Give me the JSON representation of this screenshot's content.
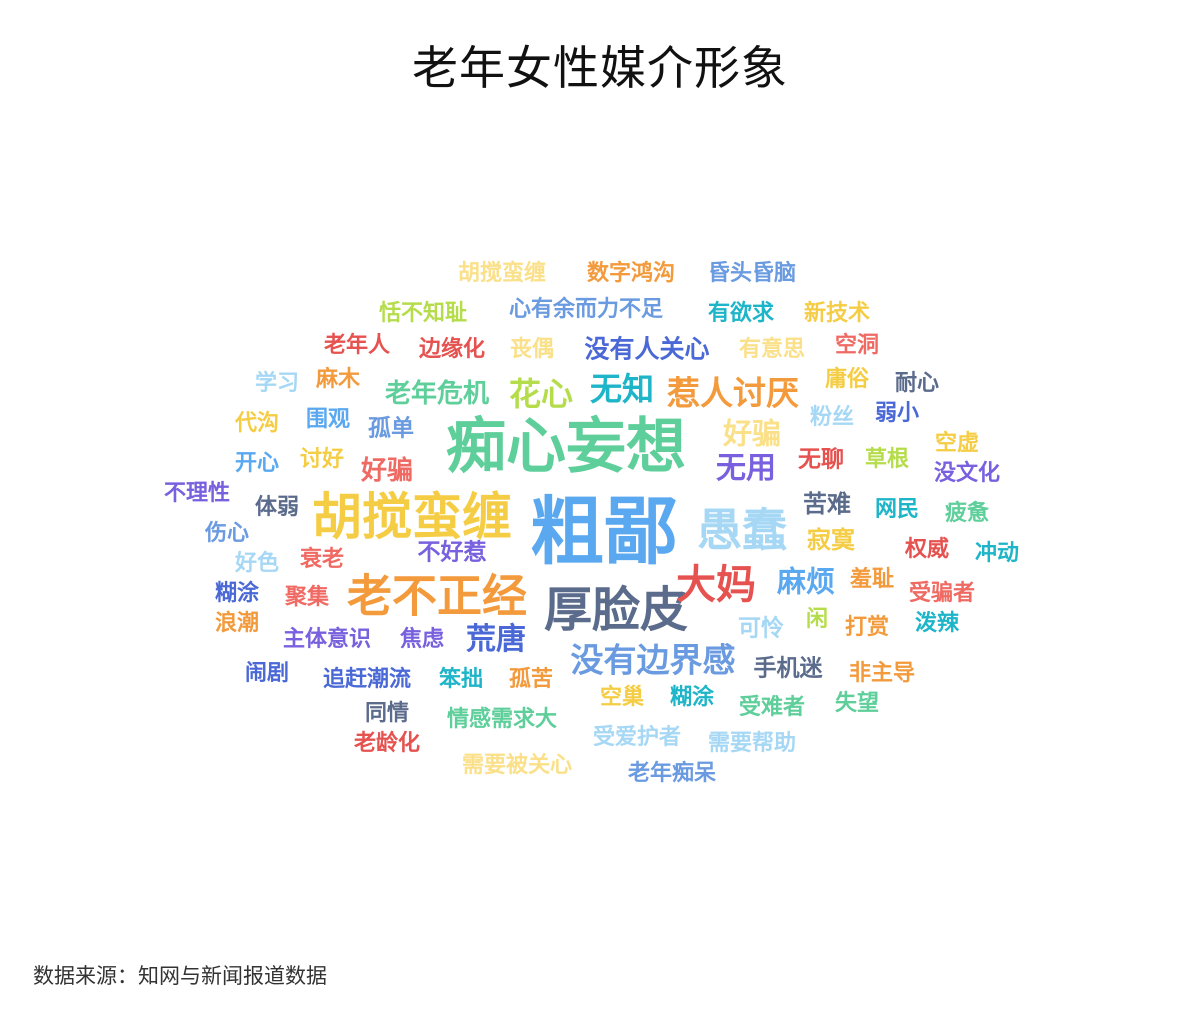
{
  "title": "老年女性媒介形象",
  "source": "数据来源：知网与新闻报道数据",
  "chart_data": {
    "type": "wordcloud",
    "title": "老年女性媒介形象",
    "words": [
      {
        "text": "粗鄙",
        "weight": 100,
        "color": "#5aa8f0"
      },
      {
        "text": "痴心妄想",
        "weight": 80,
        "color": "#5ecf9a"
      },
      {
        "text": "胡搅蛮缠",
        "weight": 65,
        "color": "#f5cd45"
      },
      {
        "text": "厚脸皮",
        "weight": 62,
        "color": "#5b6b8c"
      },
      {
        "text": "愚蠢",
        "weight": 58,
        "color": "#a6d8f5"
      },
      {
        "text": "老不正经",
        "weight": 58,
        "color": "#f39a3c"
      },
      {
        "text": "大妈",
        "weight": 50,
        "color": "#e5524f"
      },
      {
        "text": "没有边界感",
        "weight": 40,
        "color": "#6a9ae0"
      },
      {
        "text": "惹人讨厌",
        "weight": 40,
        "color": "#f39a3c"
      },
      {
        "text": "无知",
        "weight": 38,
        "color": "#1eb5c9"
      },
      {
        "text": "花心",
        "weight": 38,
        "color": "#b5dd4b"
      },
      {
        "text": "荒唐",
        "weight": 36,
        "color": "#4a68d6"
      },
      {
        "text": "无用",
        "weight": 36,
        "color": "#7860de"
      },
      {
        "text": "好骗",
        "weight": 35,
        "color": "#fbe08a"
      },
      {
        "text": "麻烦",
        "weight": 34,
        "color": "#5aa8f0"
      },
      {
        "text": "老年危机",
        "weight": 30,
        "color": "#5ecf9a"
      },
      {
        "text": "好骗",
        "weight": 30,
        "color": "#f06a64"
      },
      {
        "text": "没有人关心",
        "weight": 28,
        "color": "#4a68d6"
      },
      {
        "text": "苦难",
        "weight": 27,
        "color": "#5b6b8c"
      },
      {
        "text": "寂寞",
        "weight": 27,
        "color": "#f5cd45"
      },
      {
        "text": "可怜",
        "weight": 26,
        "color": "#a6d8f5"
      },
      {
        "text": "无聊",
        "weight": 26,
        "color": "#e5524f"
      },
      {
        "text": "孤单",
        "weight": 26,
        "color": "#6a9ae0"
      },
      {
        "text": "不好惹",
        "weight": 25,
        "color": "#7860de"
      },
      {
        "text": "手机迷",
        "weight": 25,
        "color": "#5b6b8c"
      },
      {
        "text": "心有余而力不足",
        "weight": 24,
        "color": "#6a9ae0"
      },
      {
        "text": "恬不知耻",
        "weight": 24,
        "color": "#b5dd4b"
      },
      {
        "text": "胡搅蛮缠",
        "weight": 24,
        "color": "#fbe08a"
      },
      {
        "text": "数字鸿沟",
        "weight": 24,
        "color": "#f39a3c"
      },
      {
        "text": "昏头昏脑",
        "weight": 24,
        "color": "#6a9ae0"
      },
      {
        "text": "有欲求",
        "weight": 24,
        "color": "#1eb5c9"
      },
      {
        "text": "新技术",
        "weight": 24,
        "color": "#f5cd45"
      },
      {
        "text": "老年人",
        "weight": 24,
        "color": "#e5524f"
      },
      {
        "text": "边缘化",
        "weight": 24,
        "color": "#e5524f"
      },
      {
        "text": "丧偶",
        "weight": 24,
        "color": "#fbe08a"
      },
      {
        "text": "有意思",
        "weight": 24,
        "color": "#fbe08a"
      },
      {
        "text": "空洞",
        "weight": 24,
        "color": "#f06a64"
      },
      {
        "text": "学习",
        "weight": 24,
        "color": "#a6d8f5"
      },
      {
        "text": "麻木",
        "weight": 24,
        "color": "#f39a3c"
      },
      {
        "text": "庸俗",
        "weight": 24,
        "color": "#f5cd45"
      },
      {
        "text": "耐心",
        "weight": 24,
        "color": "#5b6b8c"
      },
      {
        "text": "代沟",
        "weight": 24,
        "color": "#f5cd45"
      },
      {
        "text": "围观",
        "weight": 24,
        "color": "#5aa8f0"
      },
      {
        "text": "粉丝",
        "weight": 24,
        "color": "#a6d8f5"
      },
      {
        "text": "弱小",
        "weight": 24,
        "color": "#4a68d6"
      },
      {
        "text": "空虚",
        "weight": 24,
        "color": "#f5cd45"
      },
      {
        "text": "开心",
        "weight": 24,
        "color": "#5aa8f0"
      },
      {
        "text": "讨好",
        "weight": 24,
        "color": "#f5cd45"
      },
      {
        "text": "草根",
        "weight": 24,
        "color": "#b5dd4b"
      },
      {
        "text": "没文化",
        "weight": 24,
        "color": "#7860de"
      },
      {
        "text": "不理性",
        "weight": 24,
        "color": "#7860de"
      },
      {
        "text": "体弱",
        "weight": 24,
        "color": "#5b6b8c"
      },
      {
        "text": "网民",
        "weight": 24,
        "color": "#1eb5c9"
      },
      {
        "text": "疲惫",
        "weight": 24,
        "color": "#5ecf9a"
      },
      {
        "text": "伤心",
        "weight": 24,
        "color": "#6a9ae0"
      },
      {
        "text": "好色",
        "weight": 24,
        "color": "#a6d8f5"
      },
      {
        "text": "衰老",
        "weight": 24,
        "color": "#f06a64"
      },
      {
        "text": "权威",
        "weight": 24,
        "color": "#e5524f"
      },
      {
        "text": "冲动",
        "weight": 24,
        "color": "#1eb5c9"
      },
      {
        "text": "糊涂",
        "weight": 24,
        "color": "#4a68d6"
      },
      {
        "text": "聚集",
        "weight": 24,
        "color": "#f06a64"
      },
      {
        "text": "羞耻",
        "weight": 24,
        "color": "#f39a3c"
      },
      {
        "text": "受骗者",
        "weight": 24,
        "color": "#f06a64"
      },
      {
        "text": "浪潮",
        "weight": 24,
        "color": "#f39a3c"
      },
      {
        "text": "主体意识",
        "weight": 24,
        "color": "#7860de"
      },
      {
        "text": "焦虑",
        "weight": 24,
        "color": "#7860de"
      },
      {
        "text": "闲",
        "weight": 24,
        "color": "#b5dd4b"
      },
      {
        "text": "打赏",
        "weight": 24,
        "color": "#f39a3c"
      },
      {
        "text": "泼辣",
        "weight": 24,
        "color": "#1eb5c9"
      },
      {
        "text": "闹剧",
        "weight": 24,
        "color": "#4a68d6"
      },
      {
        "text": "追赶潮流",
        "weight": 24,
        "color": "#4a68d6"
      },
      {
        "text": "笨拙",
        "weight": 24,
        "color": "#1eb5c9"
      },
      {
        "text": "孤苦",
        "weight": 24,
        "color": "#f39a3c"
      },
      {
        "text": "非主导",
        "weight": 24,
        "color": "#f39a3c"
      },
      {
        "text": "空巢",
        "weight": 24,
        "color": "#f5cd45"
      },
      {
        "text": "糊涂",
        "weight": 24,
        "color": "#1eb5c9"
      },
      {
        "text": "同情",
        "weight": 24,
        "color": "#5b6b8c"
      },
      {
        "text": "情感需求大",
        "weight": 24,
        "color": "#5ecf9a"
      },
      {
        "text": "受难者",
        "weight": 24,
        "color": "#5ecf9a"
      },
      {
        "text": "失望",
        "weight": 24,
        "color": "#5ecf9a"
      },
      {
        "text": "老龄化",
        "weight": 24,
        "color": "#e5524f"
      },
      {
        "text": "受爱护者",
        "weight": 24,
        "color": "#a6d8f5"
      },
      {
        "text": "需要帮助",
        "weight": 24,
        "color": "#a6d8f5"
      },
      {
        "text": "需要被关心",
        "weight": 24,
        "color": "#fbe08a"
      },
      {
        "text": "老年痴呆",
        "weight": 24,
        "color": "#6a9ae0"
      }
    ]
  }
}
